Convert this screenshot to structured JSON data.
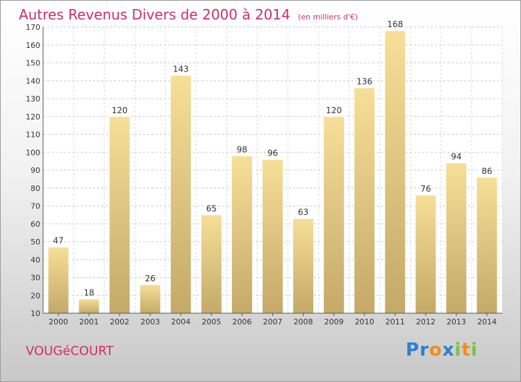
{
  "header": {
    "title": "Autres Revenus Divers de 2000 à 2014",
    "subtitle": "(en milliers d'€)"
  },
  "footer": {
    "town": "VOUGéCOURT",
    "brand_letters": [
      {
        "char": "P",
        "color": "#2a7fd4"
      },
      {
        "char": "r",
        "color": "#2a7fd4"
      },
      {
        "char": "o",
        "color": "#f08c1a"
      },
      {
        "char": "x",
        "color": "#2a7fd4"
      },
      {
        "char": "i",
        "color": "#7cc242"
      },
      {
        "char": "t",
        "color": "#f08c1a"
      },
      {
        "char": "i",
        "color": "#7cc242"
      }
    ]
  },
  "chart_data": {
    "type": "bar",
    "categories": [
      "2000",
      "2001",
      "2002",
      "2003",
      "2004",
      "2005",
      "2006",
      "2007",
      "2008",
      "2009",
      "2010",
      "2011",
      "2012",
      "2013",
      "2014"
    ],
    "values": [
      47,
      18,
      120,
      26,
      143,
      65,
      98,
      96,
      63,
      120,
      136,
      168,
      76,
      94,
      86
    ],
    "ylim": [
      10,
      170
    ],
    "yticks": [
      10,
      20,
      30,
      40,
      50,
      60,
      70,
      80,
      90,
      100,
      110,
      120,
      130,
      140,
      150,
      160,
      170
    ],
    "grid": true,
    "bar_color_light": "#f6df98",
    "bar_color_dark": "#c4a968"
  }
}
